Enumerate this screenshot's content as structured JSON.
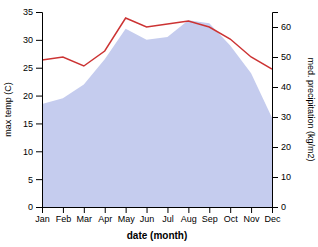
{
  "chart_data": {
    "type": "line",
    "categories": [
      "Jan",
      "Feb",
      "Mar",
      "Apr",
      "May",
      "Jun",
      "Jul",
      "Aug",
      "Sep",
      "Oct",
      "Nov",
      "Dec"
    ],
    "xlabel": "date (month)",
    "ylabel": "max temp (C)",
    "y2label": "med. precipitation (kg/m2)",
    "ylim": [
      0,
      35
    ],
    "yticks": [
      0,
      5,
      10,
      15,
      20,
      25,
      30,
      35
    ],
    "y2lim": [
      0,
      65
    ],
    "y2ticks": [
      0,
      10,
      20,
      30,
      40,
      50,
      60
    ],
    "grid": false,
    "series": [
      {
        "type": "area",
        "color": "#c5ccee",
        "values": [
          18.5,
          19.5,
          22.0,
          26.5,
          32.0,
          30.0,
          30.5,
          33.5,
          33.0,
          29.0,
          24.0,
          16.0
        ]
      },
      {
        "type": "line",
        "color": "#cc3333",
        "axis": "y2",
        "values": [
          49,
          50,
          47,
          52,
          63,
          60,
          61,
          62,
          60,
          56,
          50,
          46
        ]
      }
    ]
  }
}
